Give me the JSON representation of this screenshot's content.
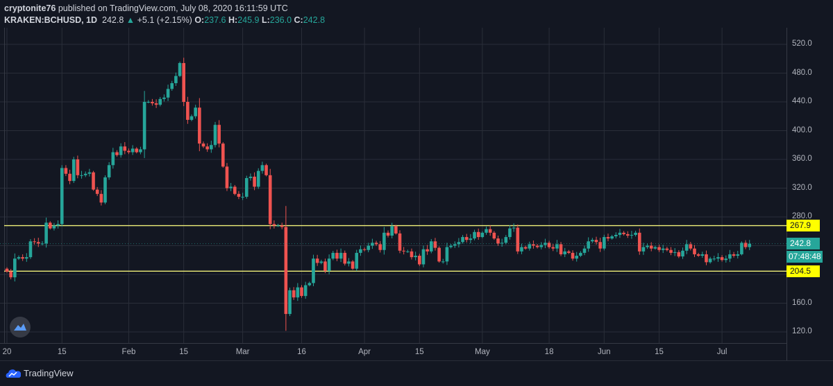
{
  "header": {
    "author": "cryptonite76",
    "published_text": "published on TradingView.com, July 08, 2020 16:11:59 UTC",
    "symbol": "KRAKEN:BCHUSD, 1D",
    "last": "242.8",
    "change": "+5.1 (+2.15%)",
    "o_label": "O:",
    "o": "237.6",
    "h_label": "H:",
    "h": "245.9",
    "l_label": "L:",
    "l": "236.0",
    "c_label": "C:",
    "c": "242.8"
  },
  "price_tags": {
    "resistance": "267.9",
    "last_price": "242.8",
    "countdown": "07:48:48",
    "support": "204.5"
  },
  "footer": {
    "brand": "TradingView"
  },
  "colors": {
    "up": "#26a69a",
    "down": "#ef5350",
    "bg": "#131722",
    "grid": "#2a2e39",
    "level": "#f2f27a"
  },
  "chart_data": {
    "type": "candlestick",
    "title": "KRAKEN:BCHUSD, 1D",
    "start_date": "2020-01-01",
    "interval": "1D",
    "first_open": 208,
    "closes": [
      204,
      196,
      222,
      224,
      222,
      224,
      246,
      245,
      243,
      243,
      272,
      264,
      268,
      270,
      348,
      340,
      330,
      360,
      338,
      338,
      340,
      342,
      318,
      312,
      300,
      335,
      352,
      370,
      366,
      378,
      372,
      370,
      375,
      370,
      374,
      440,
      440,
      438,
      436,
      444,
      446,
      458,
      466,
      476,
      494,
      440,
      415,
      420,
      432,
      382,
      378,
      374,
      380,
      408,
      382,
      350,
      320,
      322,
      312,
      308,
      308,
      334,
      336,
      322,
      344,
      352,
      338,
      270,
      268,
      268,
      266,
      145,
      178,
      168,
      182,
      170,
      185,
      188,
      222,
      216,
      218,
      205,
      222,
      230,
      222,
      230,
      215,
      218,
      208,
      230,
      235,
      234,
      240,
      244,
      242,
      234,
      258,
      254,
      267,
      257,
      233,
      232,
      232,
      224,
      226,
      214,
      235,
      232,
      246,
      237,
      218,
      218,
      238,
      240,
      242,
      245,
      252,
      248,
      250,
      259,
      252,
      258,
      263,
      258,
      250,
      243,
      244,
      252,
      264,
      265,
      232,
      238,
      236,
      242,
      240,
      238,
      241,
      244,
      238,
      236,
      242,
      228,
      232,
      230,
      222,
      226,
      230,
      236,
      246,
      248,
      245,
      236,
      252,
      250,
      253,
      255,
      258,
      256,
      254,
      255,
      258,
      232,
      238,
      240,
      236,
      238,
      234,
      236,
      234,
      230,
      231,
      225,
      233,
      242,
      236,
      228,
      226,
      228,
      217,
      222,
      222,
      224,
      220,
      222,
      228,
      226,
      228,
      244,
      238,
      242.8
    ],
    "levels": [
      267.9,
      204.5
    ],
    "y_ticks": [
      "520.0",
      "480.0",
      "440.0",
      "400.0",
      "360.0",
      "320.0",
      "280.0",
      "160.0",
      "120.0"
    ],
    "y_tick_values": [
      520,
      480,
      440,
      400,
      360,
      320,
      280,
      160,
      120
    ],
    "ylim": [
      104,
      540
    ],
    "x_ticks": [
      {
        "label": "20",
        "day": 0
      },
      {
        "label": "15",
        "day": 14
      },
      {
        "label": "Feb",
        "day": 31
      },
      {
        "label": "15",
        "day": 45
      },
      {
        "label": "Mar",
        "day": 60
      },
      {
        "label": "16",
        "day": 75
      },
      {
        "label": "Apr",
        "day": 91
      },
      {
        "label": "15",
        "day": 105
      },
      {
        "label": "May",
        "day": 121
      },
      {
        "label": "18",
        "day": 138
      },
      {
        "label": "Jun",
        "day": 152
      },
      {
        "label": "15",
        "day": 166
      },
      {
        "label": "Jul",
        "day": 182
      }
    ]
  }
}
